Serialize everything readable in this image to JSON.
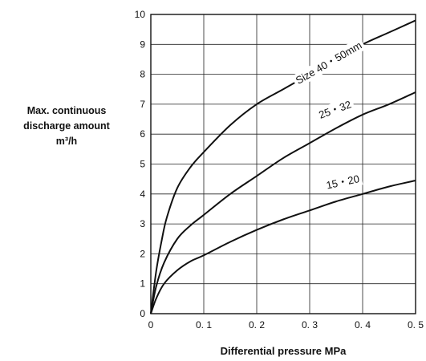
{
  "chart_data": {
    "type": "line",
    "title": "",
    "xlabel": "Differential pressure MPa",
    "ylabel_lines": [
      "Max. continuous",
      "discharge amount",
      "m³/h"
    ],
    "xlim": [
      0,
      0.5
    ],
    "ylim": [
      0,
      10
    ],
    "grid": true,
    "xticks": [
      {
        "value": 0,
        "label": "0"
      },
      {
        "value": 0.1,
        "label": "0. 1"
      },
      {
        "value": 0.2,
        "label": "0. 2"
      },
      {
        "value": 0.3,
        "label": "0. 3"
      },
      {
        "value": 0.4,
        "label": "0. 4"
      },
      {
        "value": 0.5,
        "label": "0. 5"
      }
    ],
    "yticks": [
      {
        "value": 0,
        "label": "0"
      },
      {
        "value": 1,
        "label": "1"
      },
      {
        "value": 2,
        "label": "2"
      },
      {
        "value": 3,
        "label": "3"
      },
      {
        "value": 4,
        "label": "4"
      },
      {
        "value": 5,
        "label": "5"
      },
      {
        "value": 6,
        "label": "6"
      },
      {
        "value": 7,
        "label": "7"
      },
      {
        "value": 8,
        "label": "8"
      },
      {
        "value": 9,
        "label": "9"
      },
      {
        "value": 10,
        "label": "10"
      }
    ],
    "series": [
      {
        "name": "Size 40・50mm",
        "x": [
          0,
          0.01,
          0.02,
          0.03,
          0.05,
          0.075,
          0.1,
          0.15,
          0.2,
          0.25,
          0.3,
          0.35,
          0.4,
          0.45,
          0.5
        ],
        "y": [
          0,
          1.4,
          2.4,
          3.2,
          4.2,
          4.9,
          5.4,
          6.3,
          7.0,
          7.5,
          8.0,
          8.5,
          9.0,
          9.4,
          9.8
        ],
        "label_at": [
          0.4,
          8.9
        ],
        "label_angle": -30
      },
      {
        "name": "25・32",
        "x": [
          0,
          0.01,
          0.025,
          0.05,
          0.075,
          0.1,
          0.15,
          0.2,
          0.25,
          0.3,
          0.35,
          0.4,
          0.45,
          0.5
        ],
        "y": [
          0,
          0.9,
          1.7,
          2.5,
          2.95,
          3.3,
          4.0,
          4.6,
          5.2,
          5.7,
          6.2,
          6.65,
          7.0,
          7.4
        ],
        "label_at": [
          0.38,
          6.9
        ],
        "label_angle": -20
      },
      {
        "name": "15・20",
        "x": [
          0,
          0.01,
          0.025,
          0.05,
          0.075,
          0.1,
          0.15,
          0.2,
          0.25,
          0.3,
          0.35,
          0.4,
          0.45,
          0.5
        ],
        "y": [
          0,
          0.5,
          1.0,
          1.45,
          1.75,
          1.95,
          2.4,
          2.8,
          3.15,
          3.45,
          3.75,
          4.0,
          4.25,
          4.45
        ],
        "label_at": [
          0.395,
          4.4
        ],
        "label_angle": -12
      }
    ]
  }
}
